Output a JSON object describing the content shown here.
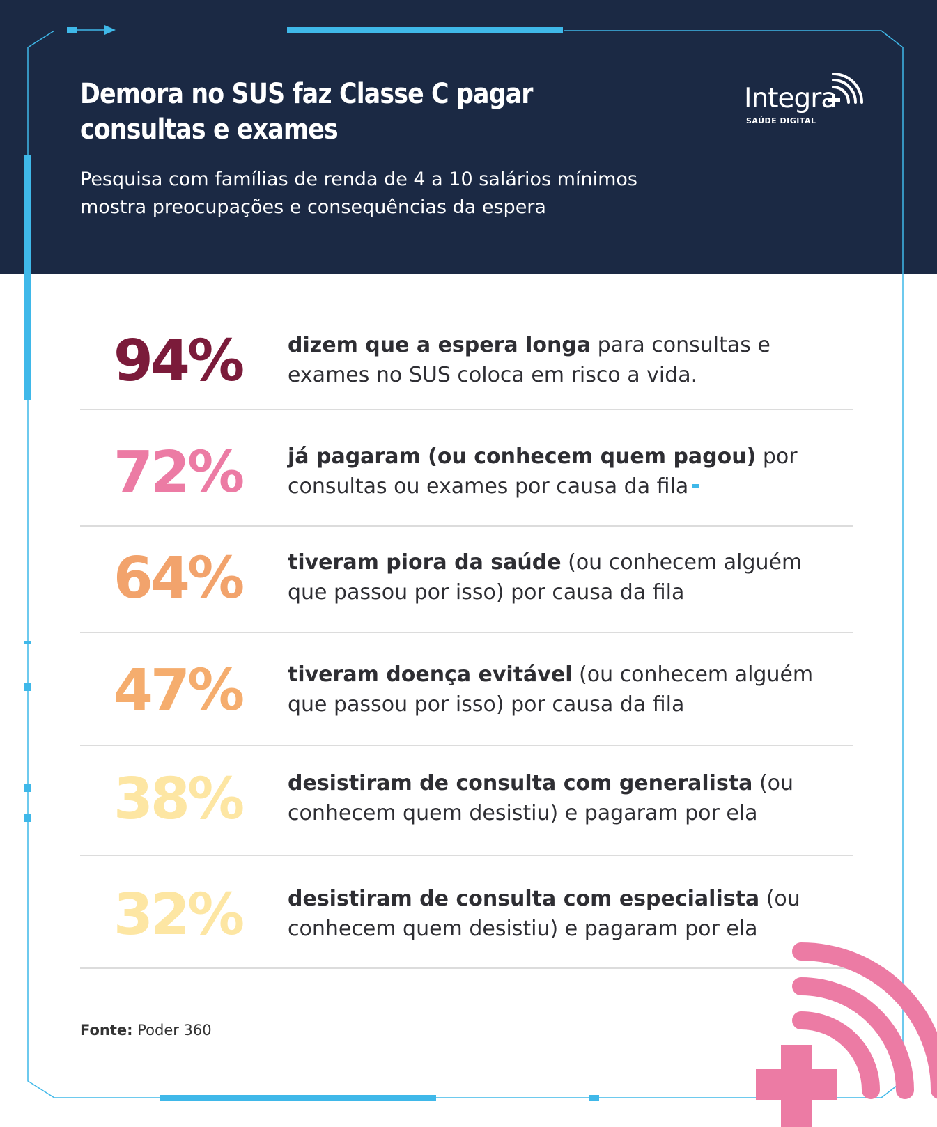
{
  "header": {
    "title": "Demora no SUS faz Classe C pagar consultas e exames",
    "subtitle": "Pesquisa com famílias de renda de 4 a 10 salários mínimos mostra preocupações e consequências da espera"
  },
  "logo": {
    "name": "Integra",
    "tagline": "SAÚDE DIGITAL",
    "icon": "signal-cross-icon"
  },
  "stats": [
    {
      "value": "94%",
      "bold": "dizem que a espera longa",
      "rest": " para consultas e exames no SUS coloca em risco a vida.",
      "color": "#7b1b3a"
    },
    {
      "value": "72%",
      "bold": "já pagaram (ou conhecem quem pagou)",
      "rest": " por consultas ou exames por causa da fila",
      "color": "#ec7ba4"
    },
    {
      "value": "64%",
      "bold": "tiveram piora da saúde",
      "rest": " (ou conhecem alguém que passou por isso) por causa da fila",
      "color": "#f2a36c"
    },
    {
      "value": "47%",
      "bold": "tiveram doença evitável",
      "rest": " (ou conhecem alguém que passou por isso) por causa da fila",
      "color": "#f5ad6e"
    },
    {
      "value": "38%",
      "bold": "desistiram de consulta com generalista",
      "rest": " (ou conhecem quem desistiu) e pagaram por ela",
      "color": "#fde6a3"
    },
    {
      "value": "32%",
      "bold": "desistiram de consulta com especialista",
      "rest": " (ou conhecem quem desistiu) e pagaram por ela",
      "color": "#fde6a3"
    }
  ],
  "source": {
    "label": "Fonte:",
    "value": " Poder 360"
  },
  "colors": {
    "header_bg": "#1b2944",
    "accent_blue": "#3fb8e9",
    "accent_pink": "#ec7ba4"
  }
}
